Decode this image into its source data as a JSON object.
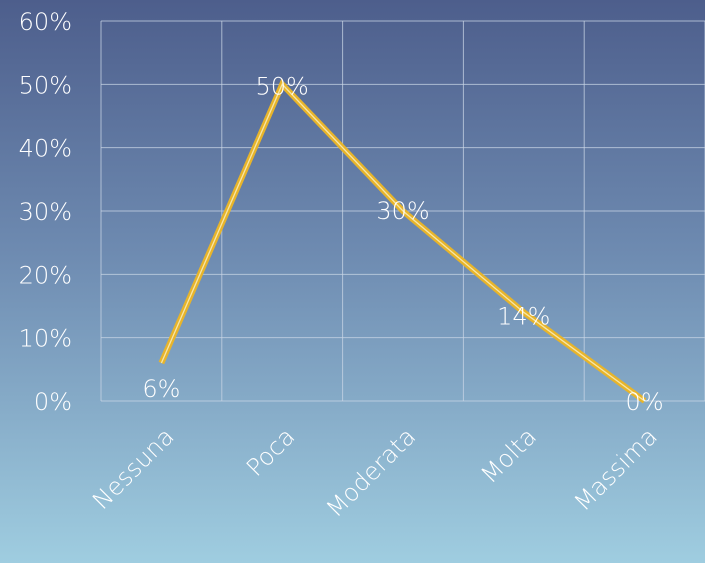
{
  "chart_data": {
    "type": "line",
    "title": "",
    "xlabel": "",
    "ylabel": "",
    "categories": [
      "Nessuna",
      "Poca",
      "Moderata",
      "Molta",
      "Massima"
    ],
    "series": [
      {
        "values": [
          6,
          50,
          30,
          14,
          0
        ],
        "labels": [
          "6%",
          "50%",
          "30%",
          "14%",
          "0%"
        ],
        "color": "#e7b42b"
      }
    ],
    "ylim": [
      0,
      60
    ],
    "yticks": [
      0,
      10,
      20,
      30,
      40,
      50,
      60
    ],
    "ytick_labels": [
      "0%",
      "10%",
      "20%",
      "30%",
      "40%",
      "50%",
      "60%"
    ],
    "grid": true,
    "grid_color": "#c9d6e6",
    "legend": "none"
  }
}
